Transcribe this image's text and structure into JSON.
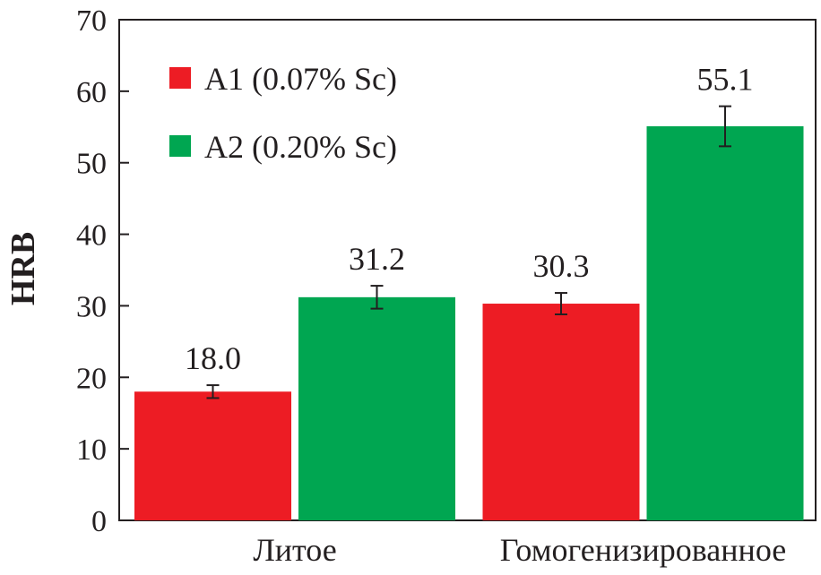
{
  "chart_data": {
    "type": "bar",
    "title": "",
    "xlabel": "",
    "ylabel": "HRB",
    "ylim": [
      0,
      70
    ],
    "yticks": [
      0,
      10,
      20,
      30,
      40,
      50,
      60,
      70
    ],
    "grid": false,
    "legend_position": "top-left",
    "categories": [
      "Литое",
      "Гомогенизированное"
    ],
    "series": [
      {
        "name": "A1 (0.07% Sc)",
        "color": "#ed1c24",
        "values": [
          18.0,
          30.3
        ],
        "labels": [
          "18.0",
          "30.3"
        ],
        "error": [
          0.9,
          1.5
        ]
      },
      {
        "name": "A2 (0.20% Sc)",
        "color": "#00a651",
        "values": [
          31.2,
          55.1
        ],
        "labels": [
          "31.2",
          "55.1"
        ],
        "error": [
          1.6,
          2.8
        ]
      }
    ]
  }
}
